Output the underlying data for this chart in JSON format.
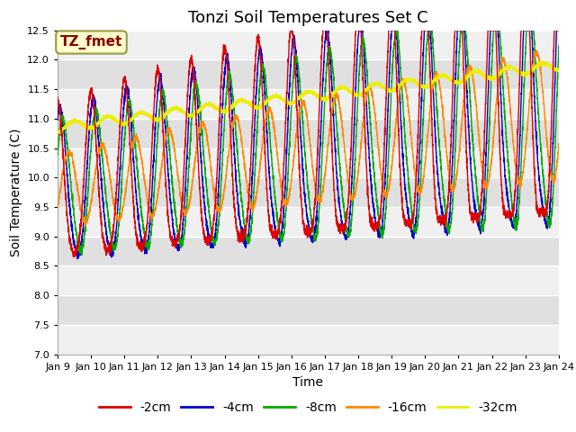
{
  "title": "Tonzi Soil Temperatures Set C",
  "xlabel": "Time",
  "ylabel": "Soil Temperature (C)",
  "ylim": [
    7.0,
    12.5
  ],
  "yticks": [
    7.0,
    7.5,
    8.0,
    8.5,
    9.0,
    9.5,
    10.0,
    10.5,
    11.0,
    11.5,
    12.0,
    12.5
  ],
  "xtick_labels": [
    "Jan 9",
    "Jan 10",
    "Jan 11",
    "Jan 12",
    "Jan 13",
    "Jan 14",
    "Jan 15",
    "Jan 16",
    "Jan 17",
    "Jan 18",
    "Jan 19",
    "Jan 20",
    "Jan 21",
    "Jan 22",
    "Jan 23",
    "Jan 24"
  ],
  "colors": {
    "-2cm": "#dd0000",
    "-4cm": "#0000cc",
    "-8cm": "#00aa00",
    "-16cm": "#ff8800",
    "-32cm": "#eeee00"
  },
  "annotation_text": "TZ_fmet",
  "annotation_bg": "#ffffcc",
  "annotation_border": "#999944",
  "annotation_text_color": "#880000",
  "plot_bg_light": "#f0f0f0",
  "plot_bg_dark": "#e0e0e0",
  "title_fontsize": 13,
  "axis_label_fontsize": 10,
  "tick_fontsize": 8,
  "legend_fontsize": 10
}
